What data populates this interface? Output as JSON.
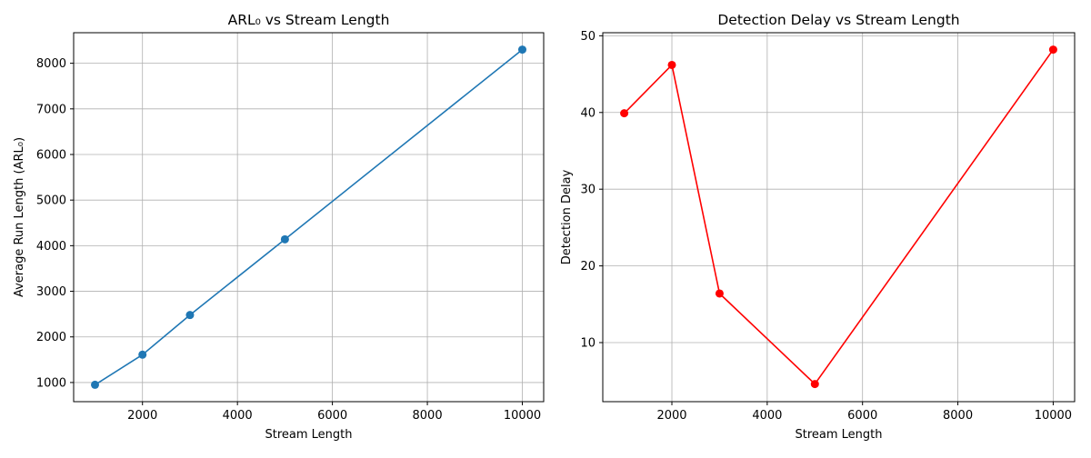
{
  "chart_data": [
    {
      "type": "line",
      "title": "ARL₀ vs Stream Length",
      "xlabel": "Stream Length",
      "ylabel": "Average Run Length (ARL₀)",
      "xlim": [
        550,
        10450
      ],
      "ylim": [
        580,
        8670
      ],
      "xticks": [
        2000,
        4000,
        6000,
        8000,
        10000
      ],
      "yticks": [
        1000,
        2000,
        3000,
        4000,
        5000,
        6000,
        7000,
        8000
      ],
      "grid": true,
      "color": "#1f77b4",
      "marker": "circle",
      "series": [
        {
          "x": [
            1000,
            2000,
            3000,
            5000,
            10000
          ],
          "values": [
            950,
            1610,
            2480,
            4140,
            8300
          ]
        }
      ]
    },
    {
      "type": "line",
      "title": "Detection Delay vs Stream Length",
      "xlabel": "Stream Length",
      "ylabel": "Detection Delay",
      "xlim": [
        550,
        10450
      ],
      "ylim": [
        2.3,
        50.4
      ],
      "xticks": [
        2000,
        4000,
        6000,
        8000,
        10000
      ],
      "yticks": [
        10,
        20,
        30,
        40,
        50
      ],
      "grid": true,
      "color": "#ff0000",
      "marker": "circle",
      "series": [
        {
          "x": [
            1000,
            2000,
            3000,
            5000,
            10000
          ],
          "values": [
            39.9,
            46.2,
            16.4,
            4.6,
            48.2
          ]
        }
      ]
    }
  ]
}
